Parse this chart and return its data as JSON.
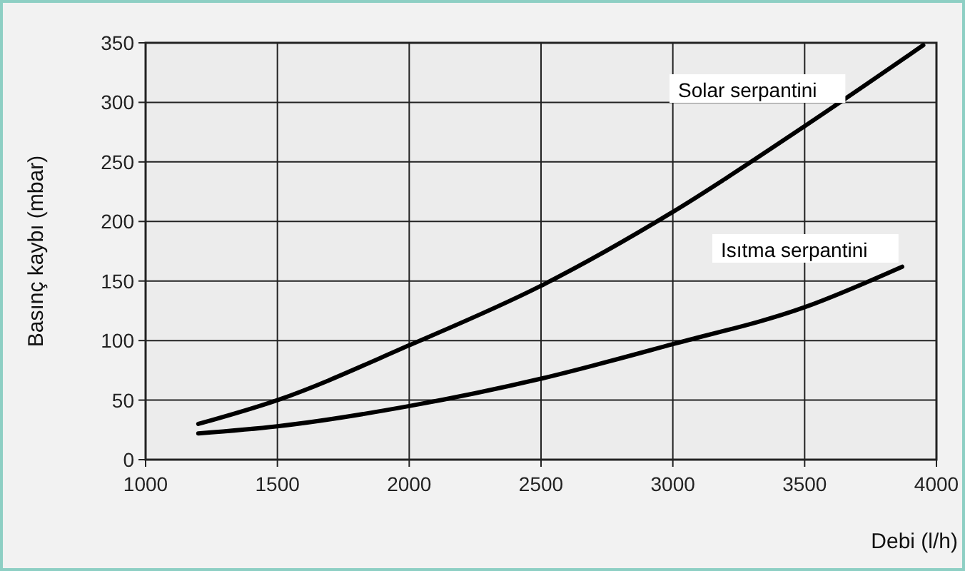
{
  "chart_data": {
    "type": "line",
    "xlabel": "Debi (l/h)",
    "ylabel": "Basınç kaybı (mbar)",
    "xlim": [
      1000,
      4000
    ],
    "xticks": [
      1000,
      1500,
      2000,
      2500,
      3000,
      3500,
      4000
    ],
    "ylim": [
      0,
      350
    ],
    "yticks": [
      0,
      50,
      100,
      150,
      200,
      250,
      300,
      350
    ],
    "grid": true,
    "series": [
      {
        "name": "Solar serpantini",
        "color": "#000000",
        "x": [
          1200,
          1500,
          2000,
          2500,
          3000,
          3500,
          3950
        ],
        "values": [
          30,
          50,
          96,
          146,
          208,
          280,
          348
        ]
      },
      {
        "name": "Isıtma serpantini",
        "color": "#000000",
        "x": [
          1200,
          1500,
          2000,
          2500,
          3000,
          3500,
          3870
        ],
        "values": [
          22,
          28,
          45,
          68,
          97,
          128,
          162
        ]
      }
    ]
  }
}
